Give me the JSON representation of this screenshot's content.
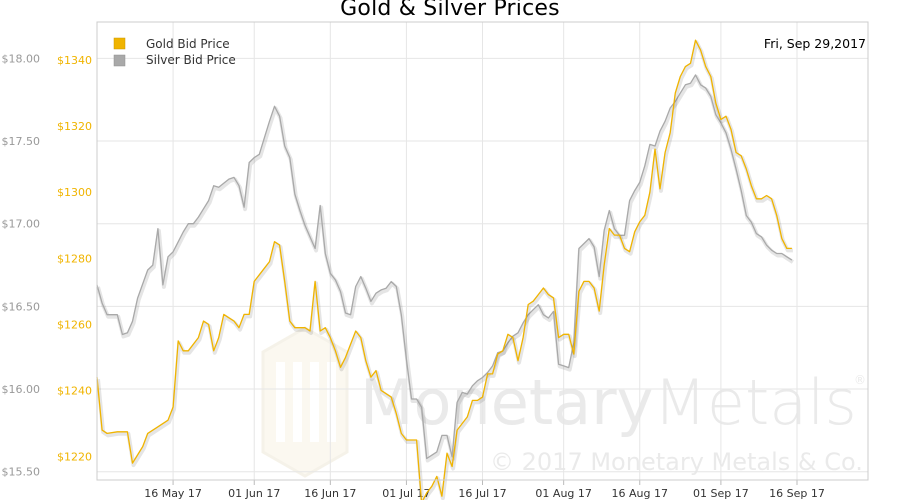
{
  "title": "Gold & Silver Prices",
  "date_label": "Fri, Sep 29,2017",
  "watermark": {
    "brand": "MonetaryMetals",
    "brand_light": "Metals",
    "brand_dark": "Monetary",
    "registered": "®",
    "copyright": "© 2017 Monetary Metals & Co."
  },
  "colors": {
    "gold": "#f0b400",
    "silver": "#a9a9a9",
    "grid": "#e6e6e6",
    "axis_text_silver": "#999999"
  },
  "chart_data": {
    "type": "line",
    "title": "Gold & Silver Prices",
    "legend_position": "top-left",
    "grid": true,
    "x_tick_labels": [
      "16 May 17",
      "01 Jun 17",
      "16 Jun 17",
      "01 Jul 17",
      "16 Jul 17",
      "01 Aug 17",
      "16 Aug 17",
      "01 Sep 17",
      "16 Sep 17"
    ],
    "x_tick_days": [
      15,
      31,
      46,
      61,
      76,
      92,
      107,
      123,
      138
    ],
    "xlim_days": [
      0,
      152
    ],
    "left_axis_silver": {
      "ticks": [
        "$15.50",
        "$16.00",
        "$16.50",
        "$17.00",
        "$17.50",
        "$18.00"
      ],
      "values": [
        15.5,
        16.0,
        16.5,
        17.0,
        17.5,
        18.0
      ],
      "ylim": [
        15.45,
        18.22
      ]
    },
    "inner_axis_gold": {
      "ticks": [
        "$1220",
        "$1240",
        "$1260",
        "$1280",
        "$1300",
        "$1320",
        "$1340"
      ],
      "values": [
        1220,
        1240,
        1260,
        1280,
        1300,
        1320,
        1340
      ],
      "ylim": [
        1212.9,
        1351.5
      ]
    },
    "series": [
      {
        "name": "Gold Bid Price",
        "color": "#f0b400",
        "points": [
          [
            0,
            1244
          ],
          [
            1,
            1228
          ],
          [
            2,
            1227
          ],
          [
            4,
            1227.5
          ],
          [
            6,
            1227.5
          ],
          [
            7,
            1218
          ],
          [
            9,
            1223
          ],
          [
            10,
            1227
          ],
          [
            12,
            1229
          ],
          [
            14,
            1231
          ],
          [
            15,
            1235
          ],
          [
            16,
            1255
          ],
          [
            17,
            1252
          ],
          [
            18,
            1252
          ],
          [
            20,
            1256
          ],
          [
            21,
            1261
          ],
          [
            22,
            1260
          ],
          [
            23,
            1252
          ],
          [
            24,
            1256
          ],
          [
            25,
            1263
          ],
          [
            26,
            1262
          ],
          [
            27,
            1261
          ],
          [
            28,
            1259
          ],
          [
            29,
            1263
          ],
          [
            30,
            1263
          ],
          [
            31,
            1273
          ],
          [
            32,
            1275
          ],
          [
            33,
            1277
          ],
          [
            34,
            1279
          ],
          [
            35,
            1285
          ],
          [
            36,
            1284
          ],
          [
            37,
            1273
          ],
          [
            38,
            1261
          ],
          [
            39,
            1259
          ],
          [
            40,
            1259
          ],
          [
            41,
            1259
          ],
          [
            42,
            1258
          ],
          [
            43,
            1273
          ],
          [
            44,
            1258
          ],
          [
            45,
            1259
          ],
          [
            46,
            1256
          ],
          [
            47,
            1252
          ],
          [
            48,
            1247
          ],
          [
            49,
            1250
          ],
          [
            51,
            1258
          ],
          [
            52,
            1256
          ],
          [
            53,
            1249
          ],
          [
            54,
            1244
          ],
          [
            55,
            1246
          ],
          [
            56,
            1240
          ],
          [
            58,
            1238
          ],
          [
            59,
            1233
          ],
          [
            60,
            1227
          ],
          [
            61,
            1225
          ],
          [
            63,
            1225
          ],
          [
            64,
            1206
          ],
          [
            65,
            1209
          ],
          [
            66,
            1211
          ],
          [
            67,
            1214
          ],
          [
            68,
            1208
          ],
          [
            69,
            1221
          ],
          [
            70,
            1217
          ],
          [
            71,
            1228
          ],
          [
            72,
            1230
          ],
          [
            73,
            1232
          ],
          [
            74,
            1237
          ],
          [
            75,
            1237
          ],
          [
            76,
            1238
          ],
          [
            77,
            1245
          ],
          [
            78,
            1245
          ],
          [
            79,
            1251
          ],
          [
            80,
            1252
          ],
          [
            81,
            1257
          ],
          [
            82,
            1256
          ],
          [
            83,
            1249
          ],
          [
            84,
            1256
          ],
          [
            85,
            1266
          ],
          [
            86,
            1267
          ],
          [
            87,
            1269
          ],
          [
            88,
            1271
          ],
          [
            89,
            1269
          ],
          [
            90,
            1268
          ],
          [
            91,
            1256
          ],
          [
            92,
            1257
          ],
          [
            93,
            1257
          ],
          [
            94,
            1251
          ],
          [
            95,
            1270
          ],
          [
            96,
            1273
          ],
          [
            97,
            1273
          ],
          [
            98,
            1271
          ],
          [
            99,
            1264
          ],
          [
            100,
            1278
          ],
          [
            101,
            1289
          ],
          [
            102,
            1287
          ],
          [
            103,
            1287
          ],
          [
            104,
            1283
          ],
          [
            105,
            1282
          ],
          [
            106,
            1288
          ],
          [
            107,
            1291
          ],
          [
            108,
            1293
          ],
          [
            109,
            1300
          ],
          [
            110,
            1313
          ],
          [
            111,
            1301
          ],
          [
            112,
            1312
          ],
          [
            113,
            1318
          ],
          [
            114,
            1330
          ],
          [
            115,
            1335
          ],
          [
            116,
            1338
          ],
          [
            117,
            1339
          ],
          [
            118,
            1346
          ],
          [
            119,
            1343
          ],
          [
            120,
            1338
          ],
          [
            121,
            1335
          ],
          [
            122,
            1327
          ],
          [
            123,
            1322
          ],
          [
            124,
            1323
          ],
          [
            125,
            1319
          ],
          [
            126,
            1312
          ],
          [
            127,
            1311
          ],
          [
            128,
            1307
          ],
          [
            129,
            1302
          ],
          [
            130,
            1298
          ],
          [
            131,
            1298
          ],
          [
            132,
            1299
          ],
          [
            133,
            1298
          ],
          [
            134,
            1293
          ],
          [
            135,
            1286
          ],
          [
            136,
            1283
          ],
          [
            137,
            1283
          ]
        ]
      },
      {
        "name": "Silver Bid Price",
        "color": "#a9a9a9",
        "points": [
          [
            0,
            16.63
          ],
          [
            1,
            16.52
          ],
          [
            2,
            16.45
          ],
          [
            4,
            16.45
          ],
          [
            5,
            16.33
          ],
          [
            6,
            16.34
          ],
          [
            7,
            16.41
          ],
          [
            8,
            16.55
          ],
          [
            10,
            16.72
          ],
          [
            11,
            16.75
          ],
          [
            12,
            16.97
          ],
          [
            13,
            16.63
          ],
          [
            14,
            16.8
          ],
          [
            15,
            16.83
          ],
          [
            17,
            16.95
          ],
          [
            18,
            17.0
          ],
          [
            19,
            17.0
          ],
          [
            20,
            17.04
          ],
          [
            21,
            17.09
          ],
          [
            22,
            17.14
          ],
          [
            23,
            17.23
          ],
          [
            24,
            17.22
          ],
          [
            26,
            17.27
          ],
          [
            27,
            17.28
          ],
          [
            28,
            17.23
          ],
          [
            29,
            17.1
          ],
          [
            30,
            17.37
          ],
          [
            31,
            17.4
          ],
          [
            32,
            17.42
          ],
          [
            33,
            17.52
          ],
          [
            34,
            17.62
          ],
          [
            35,
            17.71
          ],
          [
            36,
            17.65
          ],
          [
            37,
            17.47
          ],
          [
            38,
            17.4
          ],
          [
            39,
            17.18
          ],
          [
            40,
            17.08
          ],
          [
            41,
            16.99
          ],
          [
            42,
            16.92
          ],
          [
            43,
            16.85
          ],
          [
            44,
            17.11
          ],
          [
            45,
            16.82
          ],
          [
            46,
            16.7
          ],
          [
            47,
            16.66
          ],
          [
            48,
            16.59
          ],
          [
            49,
            16.46
          ],
          [
            50,
            16.45
          ],
          [
            51,
            16.62
          ],
          [
            52,
            16.68
          ],
          [
            53,
            16.61
          ],
          [
            54,
            16.53
          ],
          [
            55,
            16.58
          ],
          [
            56,
            16.6
          ],
          [
            57,
            16.61
          ],
          [
            58,
            16.65
          ],
          [
            59,
            16.62
          ],
          [
            60,
            16.45
          ],
          [
            61,
            16.18
          ],
          [
            62,
            15.94
          ],
          [
            63,
            15.94
          ],
          [
            64,
            15.89
          ],
          [
            65,
            15.58
          ],
          [
            66,
            15.6
          ],
          [
            67,
            15.62
          ],
          [
            68,
            15.72
          ],
          [
            69,
            15.72
          ],
          [
            70,
            15.59
          ],
          [
            71,
            15.92
          ],
          [
            72,
            15.98
          ],
          [
            73,
            15.97
          ],
          [
            74,
            16.02
          ],
          [
            75,
            16.05
          ],
          [
            76,
            16.07
          ],
          [
            77,
            16.1
          ],
          [
            78,
            16.14
          ],
          [
            79,
            16.22
          ],
          [
            80,
            16.23
          ],
          [
            81,
            16.28
          ],
          [
            82,
            16.32
          ],
          [
            83,
            16.34
          ],
          [
            84,
            16.4
          ],
          [
            85,
            16.45
          ],
          [
            86,
            16.48
          ],
          [
            87,
            16.51
          ],
          [
            88,
            16.45
          ],
          [
            89,
            16.43
          ],
          [
            90,
            16.47
          ],
          [
            91,
            16.15
          ],
          [
            92,
            16.14
          ],
          [
            93,
            16.13
          ],
          [
            94,
            16.28
          ],
          [
            95,
            16.85
          ],
          [
            96,
            16.88
          ],
          [
            97,
            16.91
          ],
          [
            98,
            16.86
          ],
          [
            99,
            16.68
          ],
          [
            100,
            16.96
          ],
          [
            101,
            17.08
          ],
          [
            102,
            16.97
          ],
          [
            103,
            16.93
          ],
          [
            104,
            16.93
          ],
          [
            105,
            17.14
          ],
          [
            106,
            17.2
          ],
          [
            107,
            17.25
          ],
          [
            108,
            17.35
          ],
          [
            109,
            17.48
          ],
          [
            110,
            17.47
          ],
          [
            111,
            17.56
          ],
          [
            112,
            17.62
          ],
          [
            113,
            17.7
          ],
          [
            114,
            17.74
          ],
          [
            115,
            17.79
          ],
          [
            116,
            17.84
          ],
          [
            117,
            17.85
          ],
          [
            118,
            17.9
          ],
          [
            119,
            17.84
          ],
          [
            120,
            17.82
          ],
          [
            121,
            17.77
          ],
          [
            122,
            17.66
          ],
          [
            123,
            17.61
          ],
          [
            124,
            17.55
          ],
          [
            125,
            17.45
          ],
          [
            126,
            17.33
          ],
          [
            127,
            17.2
          ],
          [
            128,
            17.05
          ],
          [
            129,
            17.01
          ],
          [
            130,
            16.94
          ],
          [
            131,
            16.92
          ],
          [
            132,
            16.87
          ],
          [
            133,
            16.84
          ],
          [
            134,
            16.82
          ],
          [
            135,
            16.82
          ],
          [
            136,
            16.8
          ],
          [
            137,
            16.78
          ]
        ]
      }
    ]
  }
}
